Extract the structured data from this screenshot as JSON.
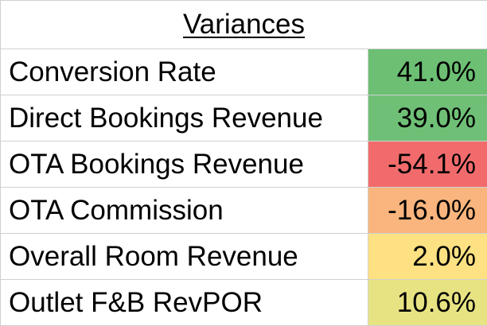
{
  "title": "Variances",
  "rows": [
    {
      "label": "Conversion Rate",
      "value": "41.0%",
      "fill": "#6cbf73"
    },
    {
      "label": "Direct Bookings Revenue",
      "value": "39.0%",
      "fill": "#6fc076"
    },
    {
      "label": "OTA Bookings Revenue",
      "value": "-54.1%",
      "fill": "#f26b6c"
    },
    {
      "label": "OTA Commission",
      "value": "-16.0%",
      "fill": "#f9b57d"
    },
    {
      "label": "Overall Room Revenue",
      "value": "2.0%",
      "fill": "#fde182"
    },
    {
      "label": "Outlet F&B RevPOR",
      "value": "10.6%",
      "fill": "#e7e383"
    }
  ]
}
